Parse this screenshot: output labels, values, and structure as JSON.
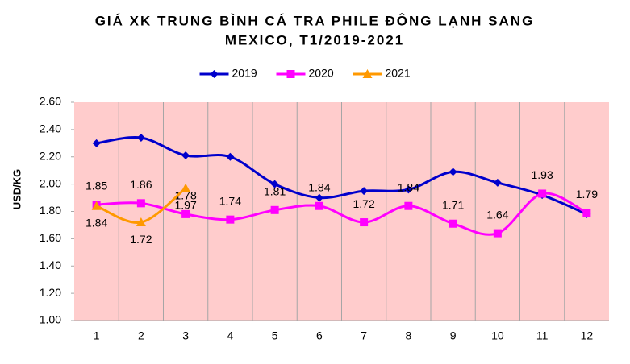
{
  "chart_data": {
    "type": "line",
    "title": [
      "GIÁ XK TRUNG BÌNH CÁ TRA PHILE ĐÔNG LẠNH SANG",
      "MEXICO, T1/2019-2021"
    ],
    "y_label": "USD/KG",
    "categories": [
      "1",
      "2",
      "3",
      "4",
      "5",
      "6",
      "7",
      "8",
      "9",
      "10",
      "11",
      "12"
    ],
    "series": [
      {
        "name": "2019",
        "color": "#0000cc",
        "marker": "diamond",
        "show_labels": false,
        "values": [
          2.3,
          2.34,
          2.21,
          2.2,
          2.0,
          1.9,
          1.95,
          1.96,
          2.09,
          2.01,
          1.92,
          1.78
        ]
      },
      {
        "name": "2020",
        "color": "#ff00ff",
        "marker": "square",
        "show_labels": true,
        "label_position": "above",
        "values": [
          1.85,
          1.86,
          1.78,
          1.74,
          1.81,
          1.84,
          1.72,
          1.84,
          1.71,
          1.64,
          1.93,
          1.79
        ]
      },
      {
        "name": "2021",
        "color": "#ff9900",
        "marker": "triangle",
        "show_labels": true,
        "label_position": "below",
        "values": [
          1.84,
          1.72,
          1.97,
          null,
          null,
          null,
          null,
          null,
          null,
          null,
          null,
          null
        ]
      }
    ],
    "ylim": [
      1.0,
      2.6
    ],
    "yticks": [
      {
        "value": 1.0,
        "label": "1.00"
      },
      {
        "value": 1.2,
        "label": "1.20"
      },
      {
        "value": 1.4,
        "label": "1.40"
      },
      {
        "value": 1.6,
        "label": "1.60"
      },
      {
        "value": 1.8,
        "label": "1.80"
      },
      {
        "value": 2.0,
        "label": "2.00"
      },
      {
        "value": 2.2,
        "label": "2.20"
      },
      {
        "value": 2.4,
        "label": "2.40"
      },
      {
        "value": 2.6,
        "label": "2.60"
      }
    ],
    "legend": "top",
    "smooth": true,
    "plot_background": "#ffcccc"
  }
}
